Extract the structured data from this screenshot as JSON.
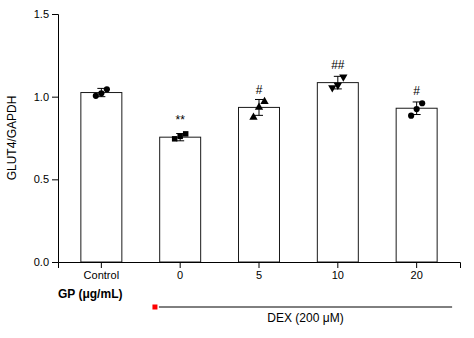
{
  "chart_data": {
    "type": "bar",
    "categories": [
      "Control",
      "0",
      "5",
      "10",
      "20"
    ],
    "values": [
      1.025,
      0.755,
      0.935,
      1.085,
      0.93
    ],
    "errors": [
      0.025,
      0.022,
      0.048,
      0.038,
      0.038
    ],
    "points": [
      [
        1.005,
        1.02,
        1.045
      ],
      [
        0.745,
        0.76,
        0.775
      ],
      [
        0.875,
        0.935,
        0.97
      ],
      [
        1.055,
        1.07,
        1.12
      ],
      [
        0.885,
        0.925,
        0.96
      ]
    ],
    "markers": [
      "circle",
      "square",
      "triangle-up",
      "triangle-down",
      "circle"
    ],
    "color": "#ffffff",
    "ylabel": "GLUT4/GAPDH",
    "xlabel": "GP (μg/mL)",
    "ylim": [
      0.0,
      1.5
    ],
    "yticks": [
      {
        "value": 0,
        "label": "0.0"
      },
      0.5,
      {
        "value": 1,
        "label": "1.0"
      },
      1.5
    ],
    "annotations": [
      {
        "text": "**",
        "category": "0",
        "y": 0.82
      },
      {
        "text": "#",
        "category": "5",
        "y": 1.005
      },
      {
        "text": "##",
        "category": "10",
        "y": 1.155
      },
      {
        "text": "#",
        "category": "20",
        "y": 0.995
      }
    ],
    "group_label": {
      "text": "DEX (200 μM)",
      "categories": [
        "0",
        "5",
        "10",
        "20"
      ],
      "color": "#ff0000"
    },
    "grid": false
  }
}
